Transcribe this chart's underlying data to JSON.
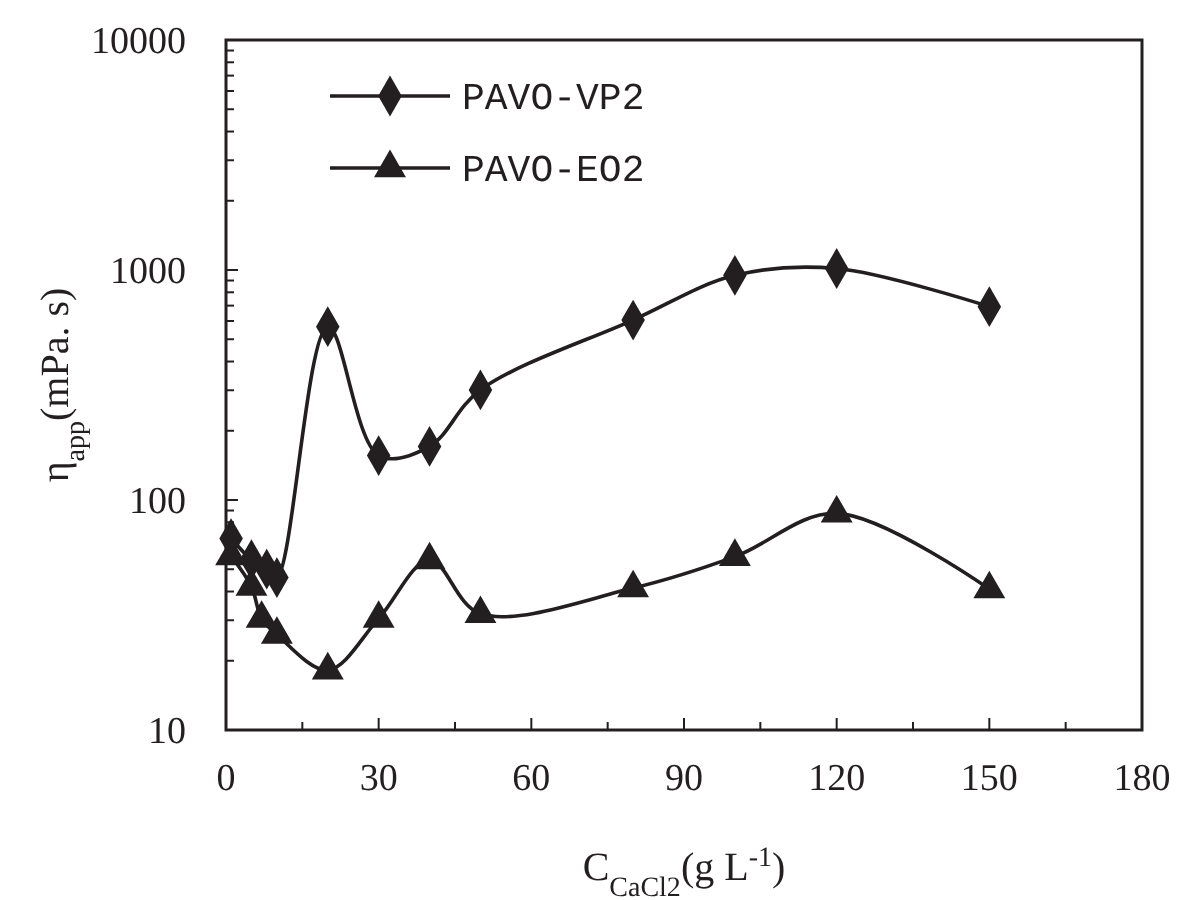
{
  "chart_data": {
    "type": "line",
    "xlabel": "C$_{CaCl2}$(g  L$^{-1}$)",
    "ylabel": "η$_{app}$(mPa. s)",
    "log": "y",
    "xlim": [
      0,
      180
    ],
    "ylim": [
      10,
      10000
    ],
    "xticks": [
      0,
      {
        "value": 15,
        "label": null
      },
      30,
      {
        "value": 45,
        "label": null
      },
      60,
      {
        "value": 75,
        "label": null
      },
      90,
      {
        "value": 105,
        "label": null
      },
      120,
      {
        "value": 135,
        "label": null
      },
      150,
      {
        "value": 165,
        "label": null
      },
      180
    ],
    "yticks": [
      10,
      {
        "value": 20,
        "label": null
      },
      {
        "value": 30,
        "label": null
      },
      {
        "value": 40,
        "label": null
      },
      {
        "value": 50,
        "label": null
      },
      {
        "value": 60,
        "label": null
      },
      {
        "value": 70,
        "label": null
      },
      {
        "value": 80,
        "label": null
      },
      {
        "value": 90,
        "label": null
      },
      100,
      {
        "value": 200,
        "label": null
      },
      {
        "value": 300,
        "label": null
      },
      {
        "value": 400,
        "label": null
      },
      {
        "value": 500,
        "label": null
      },
      {
        "value": 600,
        "label": null
      },
      {
        "value": 700,
        "label": null
      },
      {
        "value": 800,
        "label": null
      },
      {
        "value": 900,
        "label": null
      },
      1000,
      {
        "value": 2000,
        "label": null
      },
      {
        "value": 3000,
        "label": null
      },
      {
        "value": 4000,
        "label": null
      },
      {
        "value": 5000,
        "label": null
      },
      {
        "value": 6000,
        "label": null
      },
      {
        "value": 7000,
        "label": null
      },
      {
        "value": 8000,
        "label": null
      },
      {
        "value": 9000,
        "label": null
      },
      10000
    ],
    "legend": "top left",
    "grid": false,
    "line_style": "solid",
    "series": [
      {
        "name": "PAVO-VP2",
        "color": "#231f20",
        "marker": "diamond",
        "x": [
          1,
          5,
          8,
          10,
          20,
          30,
          40,
          50,
          80,
          100,
          120,
          150
        ],
        "values": [
          68,
          55,
          50,
          46,
          567,
          156,
          171,
          301,
          606,
          948,
          1015,
          693
        ]
      },
      {
        "name": "PAVO-EO2",
        "color": "#231f20",
        "marker": "triangle",
        "x": [
          1,
          5,
          7,
          10,
          20,
          30,
          40,
          50,
          80,
          100,
          120,
          150
        ],
        "values": [
          57,
          42,
          30.5,
          26,
          18.2,
          30.5,
          54.8,
          32,
          41.4,
          56.7,
          87.5,
          41
        ]
      }
    ]
  }
}
